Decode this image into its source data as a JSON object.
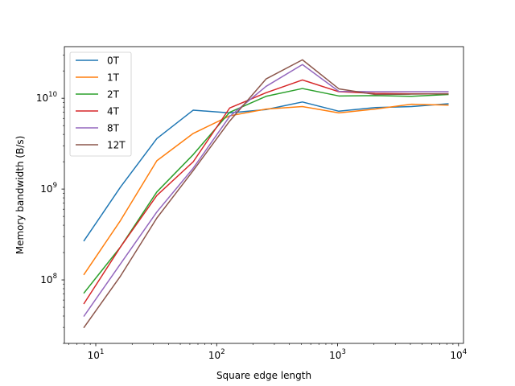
{
  "chart_data": {
    "type": "line",
    "title": "",
    "xlabel": "Square edge length",
    "ylabel": "Memory bandwidth (B/s)",
    "xscale": "log",
    "yscale": "log",
    "xlim": [
      5.5,
      11000
    ],
    "ylim": [
      20000000,
      37000000000
    ],
    "x_ticks": [
      {
        "value": 10,
        "base": "10",
        "exp": "1"
      },
      {
        "value": 100,
        "base": "10",
        "exp": "2"
      },
      {
        "value": 1000,
        "base": "10",
        "exp": "3"
      },
      {
        "value": 10000,
        "base": "10",
        "exp": "4"
      }
    ],
    "y_ticks": [
      {
        "value": 100000000,
        "base": "10",
        "exp": "8"
      },
      {
        "value": 1000000000,
        "base": "10",
        "exp": "9"
      },
      {
        "value": 10000000000,
        "base": "10",
        "exp": "10"
      }
    ],
    "grid": false,
    "legend_position": "top-left",
    "x": [
      8,
      16,
      32,
      64,
      128,
      256,
      512,
      1024,
      2048,
      4096,
      8192
    ],
    "series": [
      {
        "name": "0T",
        "color": "#1f77b4",
        "values": [
          270000000,
          1050000000,
          3600000000,
          7400000000,
          6900000000,
          7500000000,
          9100000000,
          7200000000,
          7900000000,
          8100000000,
          8700000000
        ]
      },
      {
        "name": "1T",
        "color": "#ff7f0e",
        "values": [
          115000000,
          450000000,
          2050000000,
          4100000000,
          6400000000,
          7600000000,
          8100000000,
          6900000000,
          7600000000,
          8600000000,
          8400000000
        ]
      },
      {
        "name": "2T",
        "color": "#2ca02c",
        "values": [
          72000000,
          230000000,
          930000000,
          2400000000,
          7000000000,
          10500000000,
          12800000000,
          10600000000,
          10700000000,
          10500000000,
          11000000000
        ]
      },
      {
        "name": "4T",
        "color": "#d62728",
        "values": [
          55000000,
          230000000,
          850000000,
          2000000000,
          7800000000,
          11500000000,
          15900000000,
          11800000000,
          11300000000,
          11200000000,
          11200000000
        ]
      },
      {
        "name": "8T",
        "color": "#9467bd",
        "values": [
          40000000,
          150000000,
          560000000,
          1700000000,
          6300000000,
          13500000000,
          23500000000,
          11900000000,
          11800000000,
          11800000000,
          11800000000
        ]
      },
      {
        "name": "12T",
        "color": "#8c564b",
        "values": [
          30000000,
          110000000,
          480000000,
          1600000000,
          5600000000,
          16300000000,
          26500000000,
          12700000000,
          11000000000,
          11100000000,
          11200000000
        ]
      }
    ]
  }
}
